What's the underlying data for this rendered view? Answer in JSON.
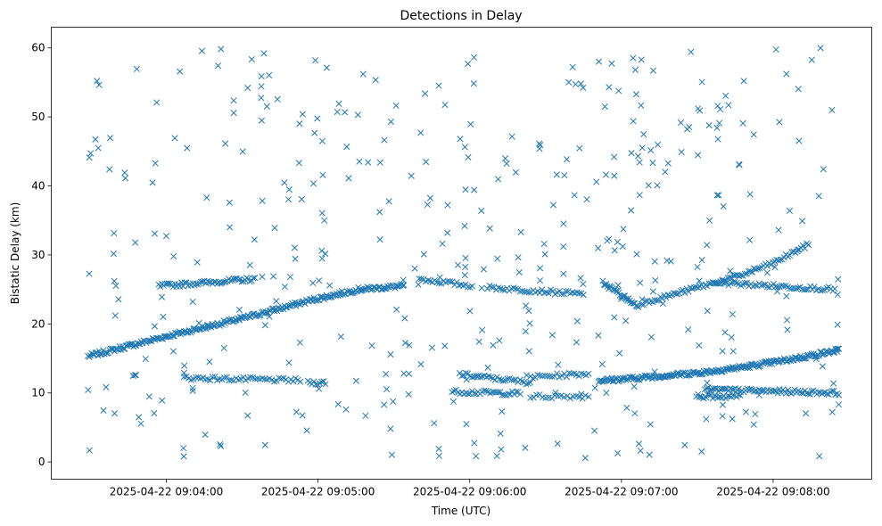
{
  "chart_data": {
    "type": "scatter",
    "title": "Detections in Delay",
    "xlabel": "Time (UTC)",
    "ylabel": "Bistatic Delay (km)",
    "x_origin": "2025-04-22 09:03:00",
    "x_units": "seconds since x_origin",
    "xlim": [
      194.5,
      519
    ],
    "ylim": [
      -2.5,
      63
    ],
    "x_ticks": [
      {
        "value": 240,
        "label": "2025-04-22 09:04:00"
      },
      {
        "value": 300,
        "label": "2025-04-22 09:05:00"
      },
      {
        "value": 360,
        "label": "2025-04-22 09:06:00"
      },
      {
        "value": 420,
        "label": "2025-04-22 09:07:00"
      },
      {
        "value": 480,
        "label": "2025-04-22 09:08:00"
      }
    ],
    "y_ticks": [
      {
        "value": 0,
        "label": "0"
      },
      {
        "value": 10,
        "label": "10"
      },
      {
        "value": 20,
        "label": "20"
      },
      {
        "value": 30,
        "label": "30"
      },
      {
        "value": 40,
        "label": "40"
      },
      {
        "value": 50,
        "label": "50"
      },
      {
        "value": 60,
        "label": "60"
      }
    ],
    "marker": "x",
    "color": "#1f77b4",
    "grid": false,
    "tracks": [
      {
        "knots": [
          [
            209,
            15.3
          ],
          [
            240,
            18.2
          ],
          [
            270,
            20.8
          ],
          [
            298,
            23.5
          ],
          [
            316,
            25
          ],
          [
            334,
            25.5
          ]
        ],
        "n": 250
      },
      {
        "knots": [
          [
            237,
            25.5
          ],
          [
            275,
            26.5
          ]
        ],
        "n": 60
      },
      {
        "knots": [
          [
            247,
            12.2
          ],
          [
            293,
            11.8
          ]
        ],
        "n": 50
      },
      {
        "knots": [
          [
            296,
            11.5
          ],
          [
            303,
            11.5
          ]
        ],
        "n": 10
      },
      {
        "knots": [
          [
            340,
            26.5
          ],
          [
            361,
            25.5
          ]
        ],
        "n": 25
      },
      {
        "knots": [
          [
            367,
            25.3
          ],
          [
            405,
            24.3
          ]
        ],
        "n": 45
      },
      {
        "knots": [
          [
            356,
            12.7
          ],
          [
            384,
            11.5
          ]
        ],
        "n": 35
      },
      {
        "knots": [
          [
            353,
            10.2
          ],
          [
            380,
            9.9
          ]
        ],
        "n": 35
      },
      {
        "knots": [
          [
            384,
            12.3
          ],
          [
            407,
            12.8
          ]
        ],
        "n": 25
      },
      {
        "knots": [
          [
            384,
            9.5
          ],
          [
            407,
            9.5
          ]
        ],
        "n": 20
      },
      {
        "knots": [
          [
            411,
            11.8
          ],
          [
            421,
            12
          ],
          [
            453,
            13
          ],
          [
            473,
            14
          ],
          [
            489,
            15
          ],
          [
            506,
            16.2
          ]
        ],
        "n": 220
      },
      {
        "knots": [
          [
            412.6,
            26
          ],
          [
            426.7,
            22.5
          ]
        ],
        "n": 30
      },
      {
        "knots": [
          [
            428,
            23
          ],
          [
            467,
            27
          ],
          [
            481,
            29
          ],
          [
            494,
            31.5
          ]
        ],
        "n": 90
      },
      {
        "knots": [
          [
            456.7,
            26
          ],
          [
            504.4,
            25
          ]
        ],
        "n": 60
      },
      {
        "knots": [
          [
            453,
            10.5
          ],
          [
            506,
            10
          ]
        ],
        "n": 80
      },
      {
        "knots": [
          [
            449.6,
            9.5
          ],
          [
            467,
            9.5
          ]
        ],
        "n": 25
      }
    ],
    "noise": {
      "count": 420,
      "t_range": [
        209,
        506
      ],
      "d_range": [
        0.5,
        60
      ],
      "seed": 7
    }
  }
}
